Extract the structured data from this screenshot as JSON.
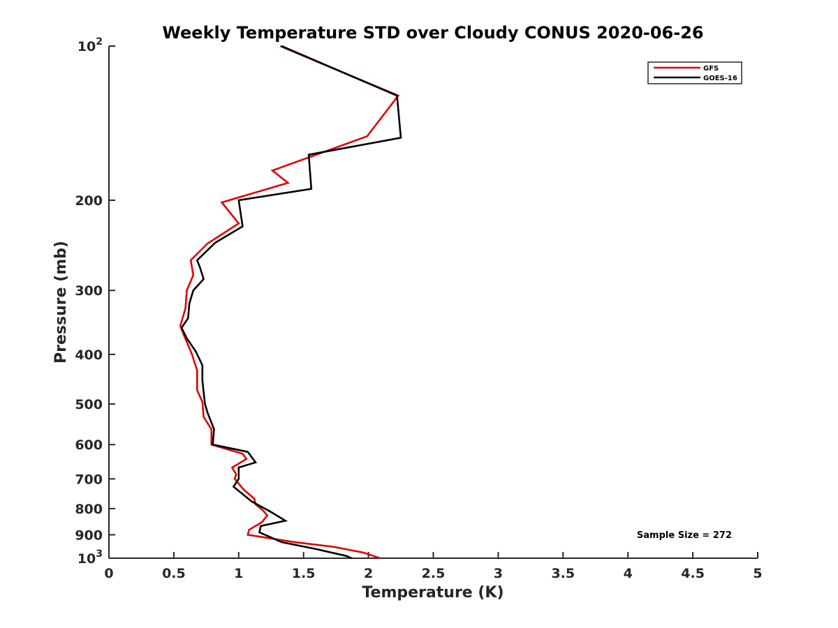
{
  "chart_data": {
    "type": "line",
    "title": "Weekly Temperature STD over Cloudy CONUS 2020-06-26",
    "xlabel": "Temperature (K)",
    "ylabel": "Pressure (mb)",
    "xlim": [
      0,
      5
    ],
    "ylim": [
      100,
      1000
    ],
    "y_scale": "log",
    "y_reversed": true,
    "grid": false,
    "legend_position": "top-right",
    "x_ticks": [
      "0",
      "0.5",
      "1",
      "1.5",
      "2",
      "2.5",
      "3",
      "3.5",
      "4",
      "4.5",
      "5"
    ],
    "x_tick_values": [
      0,
      0.5,
      1,
      1.5,
      2,
      2.5,
      3,
      3.5,
      4,
      4.5,
      5
    ],
    "y_ticks": [
      {
        "value": 100,
        "base": "10",
        "exp": "2"
      },
      {
        "value": 200,
        "label": "200"
      },
      {
        "value": 300,
        "label": "300"
      },
      {
        "value": 400,
        "label": "400"
      },
      {
        "value": 500,
        "label": "500"
      },
      {
        "value": 600,
        "label": "600"
      },
      {
        "value": 700,
        "label": "700"
      },
      {
        "value": 800,
        "label": "800"
      },
      {
        "value": 900,
        "label": "900"
      },
      {
        "value": 1000,
        "base": "10",
        "exp": "3"
      }
    ],
    "series": [
      {
        "name": "GFS",
        "color": "#e00000",
        "points": [
          [
            1.32,
            100
          ],
          [
            2.23,
            125
          ],
          [
            1.99,
            150
          ],
          [
            1.26,
            175
          ],
          [
            1.38,
            185
          ],
          [
            0.87,
            202
          ],
          [
            1.0,
            222
          ],
          [
            0.76,
            243
          ],
          [
            0.63,
            262
          ],
          [
            0.65,
            280
          ],
          [
            0.6,
            300
          ],
          [
            0.59,
            325
          ],
          [
            0.55,
            352
          ],
          [
            0.58,
            368
          ],
          [
            0.64,
            400
          ],
          [
            0.68,
            430
          ],
          [
            0.68,
            470
          ],
          [
            0.72,
            495
          ],
          [
            0.73,
            530
          ],
          [
            0.79,
            560
          ],
          [
            0.79,
            600
          ],
          [
            1.03,
            625
          ],
          [
            1.06,
            640
          ],
          [
            0.95,
            665
          ],
          [
            0.98,
            685
          ],
          [
            0.97,
            700
          ],
          [
            1.04,
            735
          ],
          [
            1.12,
            765
          ],
          [
            1.13,
            785
          ],
          [
            1.19,
            808
          ],
          [
            1.22,
            825
          ],
          [
            1.18,
            850
          ],
          [
            1.08,
            880
          ],
          [
            1.07,
            900
          ],
          [
            1.43,
            930
          ],
          [
            1.73,
            950
          ],
          [
            1.96,
            975
          ],
          [
            2.09,
            1000
          ]
        ]
      },
      {
        "name": "GOES-16",
        "color": "#000000",
        "points": [
          [
            1.33,
            100
          ],
          [
            2.22,
            125
          ],
          [
            2.25,
            151
          ],
          [
            1.54,
            163
          ],
          [
            1.56,
            190
          ],
          [
            1.0,
            200
          ],
          [
            1.03,
            225
          ],
          [
            0.82,
            242
          ],
          [
            0.68,
            262
          ],
          [
            0.7,
            270
          ],
          [
            0.73,
            285
          ],
          [
            0.65,
            300
          ],
          [
            0.62,
            318
          ],
          [
            0.61,
            340
          ],
          [
            0.56,
            355
          ],
          [
            0.6,
            372
          ],
          [
            0.67,
            395
          ],
          [
            0.72,
            420
          ],
          [
            0.72,
            450
          ],
          [
            0.74,
            500
          ],
          [
            0.76,
            520
          ],
          [
            0.81,
            560
          ],
          [
            0.8,
            600
          ],
          [
            1.07,
            620
          ],
          [
            1.13,
            650
          ],
          [
            1.0,
            665
          ],
          [
            1.0,
            700
          ],
          [
            0.96,
            725
          ],
          [
            1.06,
            760
          ],
          [
            1.1,
            775
          ],
          [
            1.24,
            810
          ],
          [
            1.31,
            830
          ],
          [
            1.36,
            845
          ],
          [
            1.17,
            865
          ],
          [
            1.16,
            890
          ],
          [
            1.33,
            930
          ],
          [
            1.6,
            960
          ],
          [
            1.83,
            990
          ],
          [
            1.87,
            1000
          ]
        ]
      }
    ],
    "annotation": "Sample Size = 272"
  }
}
